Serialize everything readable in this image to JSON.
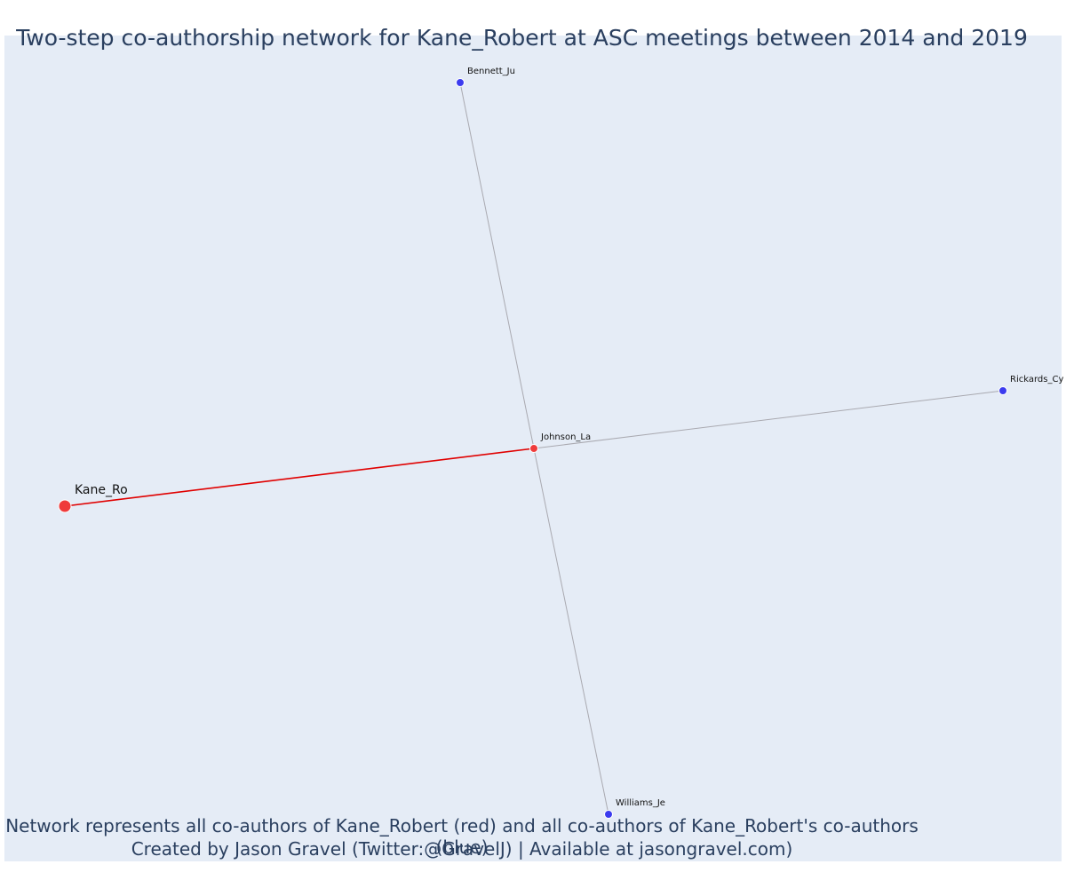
{
  "title": "Two-step co-authorship network for Kane_Robert at ASC meetings between 2014 and 2019",
  "caption_line1": "Network represents all co-authors of Kane_Robert (red) and all co-authors of Kane_Robert's co-authors (blue)",
  "caption_line2": "Created by Jason Gravel (Twitter:@GravelJ) | Available at jasongravel.com)",
  "colors": {
    "ego": "#ef3b3b",
    "first_step": "#ef3b3b",
    "second_step": "#3b3bef",
    "ego_edge": "#e00000",
    "other_edge": "#a9a9b0",
    "background": "#e5ecf6",
    "text": "#2a3f5f"
  },
  "nodes": [
    {
      "id": "Kane_Ro",
      "label": "Kane_Ro",
      "role": "ego"
    },
    {
      "id": "Johnson_La",
      "label": "Johnson_La",
      "role": "first_step"
    },
    {
      "id": "Bennett_Ju",
      "label": "Bennett_Ju",
      "role": "second_step"
    },
    {
      "id": "Rickards_Cy",
      "label": "Rickards_Cy",
      "role": "second_step"
    },
    {
      "id": "Williams_Je",
      "label": "Williams_Je",
      "role": "second_step"
    }
  ],
  "edges": [
    {
      "source": "Kane_Ro",
      "target": "Johnson_La",
      "type": "ego"
    },
    {
      "source": "Johnson_La",
      "target": "Bennett_Ju",
      "type": "other"
    },
    {
      "source": "Johnson_La",
      "target": "Rickards_Cy",
      "type": "other"
    },
    {
      "source": "Johnson_La",
      "target": "Williams_Je",
      "type": "other"
    }
  ]
}
